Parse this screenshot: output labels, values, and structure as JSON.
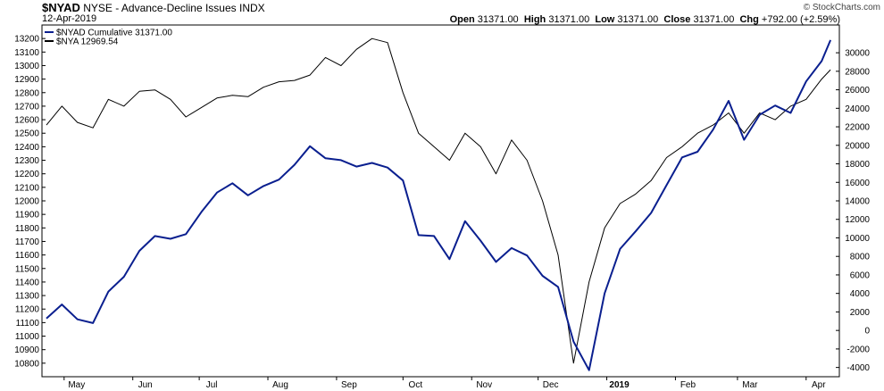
{
  "header": {
    "symbol": "$NYAD",
    "description": "NYSE - Advance-Decline Issues",
    "exchange": "INDX",
    "date": "12-Apr-2019",
    "credit": "© StockCharts.com",
    "ohlc": [
      {
        "label": "Open",
        "value": "31371.00"
      },
      {
        "label": "High",
        "value": "31371.00"
      },
      {
        "label": "Low",
        "value": "31371.00"
      },
      {
        "label": "Close",
        "value": "31371.00"
      },
      {
        "label": "Chg",
        "value": "+792.00 (+2.59%)"
      }
    ]
  },
  "chart_data": {
    "type": "line",
    "x": [
      "2018-04-23",
      "2018-04-30",
      "2018-05-07",
      "2018-05-14",
      "2018-05-21",
      "2018-05-28",
      "2018-06-04",
      "2018-06-11",
      "2018-06-18",
      "2018-06-25",
      "2018-07-02",
      "2018-07-09",
      "2018-07-16",
      "2018-07-23",
      "2018-07-30",
      "2018-08-06",
      "2018-08-13",
      "2018-08-20",
      "2018-08-27",
      "2018-09-03",
      "2018-09-10",
      "2018-09-17",
      "2018-09-24",
      "2018-10-01",
      "2018-10-08",
      "2018-10-15",
      "2018-10-22",
      "2018-10-29",
      "2018-11-05",
      "2018-11-12",
      "2018-11-19",
      "2018-11-26",
      "2018-12-03",
      "2018-12-10",
      "2018-12-17",
      "2018-12-24",
      "2018-12-31",
      "2019-01-07",
      "2019-01-14",
      "2019-01-21",
      "2019-01-28",
      "2019-02-04",
      "2019-02-11",
      "2019-02-18",
      "2019-02-25",
      "2019-03-04",
      "2019-03-11",
      "2019-03-18",
      "2019-03-25",
      "2019-04-01",
      "2019-04-08",
      "2019-04-12"
    ],
    "x_tick_labels": [
      "May",
      "Jun",
      "Jul",
      "Aug",
      "Sep",
      "Oct",
      "Nov",
      "Dec",
      "2019",
      "Feb",
      "Mar",
      "Apr"
    ],
    "series": [
      {
        "name": "$NYAD Cumulative 31371.00",
        "color": "#0a1f8f",
        "axis": "right",
        "values": [
          1300,
          2800,
          1200,
          800,
          4200,
          5800,
          8600,
          10200,
          9900,
          10400,
          12800,
          14900,
          15900,
          14600,
          15600,
          16300,
          17900,
          19900,
          18600,
          18400,
          17700,
          18100,
          17600,
          16200,
          10300,
          10200,
          7700,
          11800,
          9700,
          7400,
          8900,
          8100,
          5900,
          4700,
          -1200,
          -4300,
          4000,
          8800,
          10700,
          12700,
          15700,
          18700,
          19300,
          21700,
          24800,
          20600,
          23300,
          24300,
          23500,
          26900,
          29100,
          31371
        ]
      },
      {
        "name": "$NYA 12969.54",
        "color": "#000000",
        "axis": "left",
        "values": [
          12560,
          12700,
          12580,
          12540,
          12750,
          12700,
          12810,
          12820,
          12750,
          12620,
          12690,
          12760,
          12780,
          12770,
          12840,
          12880,
          12890,
          12930,
          13060,
          13000,
          13120,
          13200,
          13170,
          12800,
          12500,
          12400,
          12300,
          12500,
          12400,
          12200,
          12450,
          12300,
          12000,
          11600,
          10800,
          11400,
          11800,
          11980,
          12050,
          12150,
          12320,
          12400,
          12500,
          12560,
          12650,
          12500,
          12650,
          12600,
          12700,
          12750,
          12900,
          12969.54
        ]
      }
    ],
    "y_left": {
      "range": [
        10700,
        13300
      ],
      "ticks": [
        10800,
        10900,
        11000,
        11100,
        11200,
        11300,
        11400,
        11500,
        11600,
        11700,
        11800,
        11900,
        12000,
        12100,
        12200,
        12300,
        12400,
        12500,
        12600,
        12700,
        12800,
        12900,
        13000,
        13100,
        13200
      ]
    },
    "y_right": {
      "range": [
        -5000,
        33000
      ],
      "ticks": [
        -4000,
        -2000,
        0,
        2000,
        4000,
        6000,
        8000,
        10000,
        12000,
        14000,
        16000,
        18000,
        20000,
        22000,
        24000,
        26000,
        28000,
        30000
      ]
    },
    "grid": false,
    "legend_position": "top-left"
  }
}
